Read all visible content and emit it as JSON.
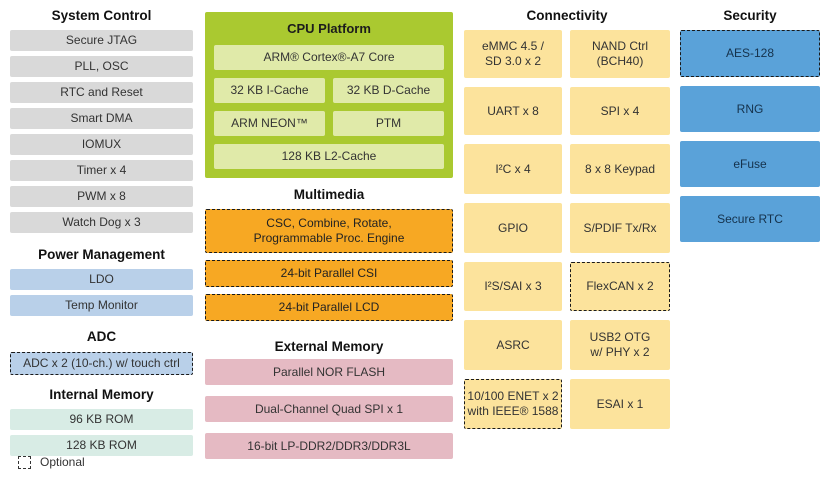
{
  "colors": {
    "system_control_box": "#d9d9d9",
    "power_management_box": "#b9d0e9",
    "internal_memory_box": "#d8ece5",
    "cpu_container": "#aac930",
    "cpu_inner_box": "#e0eaa9",
    "multimedia_box": "#f7a823",
    "external_memory_box": "#e5bac3",
    "connectivity_box": "#fce39c",
    "security_box": "#5aa2d9",
    "background": "#ffffff"
  },
  "legend": {
    "label": "Optional"
  },
  "sections": {
    "system_control": {
      "title": "System Control",
      "items": [
        "Secure JTAG",
        "PLL, OSC",
        "RTC and Reset",
        "Smart DMA",
        "IOMUX",
        "Timer x 4",
        "PWM x 8",
        "Watch Dog x 3"
      ]
    },
    "power_management": {
      "title": "Power Management",
      "items": [
        "LDO",
        "Temp Monitor"
      ]
    },
    "adc": {
      "title": "ADC",
      "items": [
        {
          "label": "ADC x 2 (10-ch.) w/ touch ctrl",
          "optional": true
        }
      ]
    },
    "internal_memory": {
      "title": "Internal Memory",
      "items": [
        "96 KB ROM",
        "128 KB ROM"
      ]
    },
    "cpu_platform": {
      "title": "CPU Platform",
      "core": "ARM® Cortex®-A7 Core",
      "icache": "32 KB I-Cache",
      "dcache": "32 KB D-Cache",
      "neon": "ARM NEON™",
      "ptm": "PTM",
      "l2": "128 KB L2-Cache"
    },
    "multimedia": {
      "title": "Multimedia",
      "items": [
        {
          "label": "CSC, Combine, Rotate,\nProgrammable Proc. Engine",
          "optional": true
        },
        {
          "label": "24-bit Parallel CSI",
          "optional": true
        },
        {
          "label": "24-bit Parallel LCD",
          "optional": true
        }
      ]
    },
    "external_memory": {
      "title": "External Memory",
      "items": [
        "Parallel NOR FLASH",
        "Dual-Channel Quad SPI x 1",
        "16-bit LP-DDR2/DDR3/DDR3L"
      ]
    },
    "connectivity": {
      "title": "Connectivity",
      "items": [
        {
          "label": "eMMC 4.5 /\nSD 3.0 x 2",
          "optional": false
        },
        {
          "label": "NAND Ctrl\n(BCH40)",
          "optional": false
        },
        {
          "label": "UART x 8",
          "optional": false
        },
        {
          "label": "SPI x 4",
          "optional": false
        },
        {
          "label": "I²C x 4",
          "optional": false
        },
        {
          "label": "8 x 8 Keypad",
          "optional": false
        },
        {
          "label": "GPIO",
          "optional": false
        },
        {
          "label": "S/PDIF Tx/Rx",
          "optional": false
        },
        {
          "label": "I²S/SAI x 3",
          "optional": false
        },
        {
          "label": "FlexCAN x 2",
          "optional": true
        },
        {
          "label": "ASRC",
          "optional": false
        },
        {
          "label": "USB2 OTG\nw/ PHY x 2",
          "optional": false
        },
        {
          "label": "10/100 ENET x 2\nwith IEEE® 1588",
          "optional": true
        },
        {
          "label": "ESAI x 1",
          "optional": false
        }
      ]
    },
    "security": {
      "title": "Security",
      "items": [
        {
          "label": "AES-128",
          "optional": true
        },
        {
          "label": "RNG",
          "optional": false
        },
        {
          "label": "eFuse",
          "optional": false
        },
        {
          "label": "Secure RTC",
          "optional": false
        }
      ]
    }
  }
}
